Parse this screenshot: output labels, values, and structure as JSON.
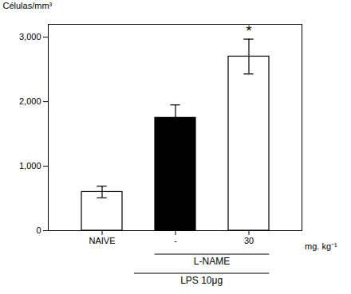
{
  "chart_data": {
    "type": "bar",
    "categories": [
      "NAIVE",
      "-",
      "30"
    ],
    "values": [
      600,
      1750,
      2700
    ],
    "errors": [
      90,
      200,
      270
    ],
    "colors": [
      "white",
      "black",
      "white"
    ],
    "ylabel": "Células/mm³",
    "ylim": [
      0,
      3200
    ],
    "yticks": [
      0,
      1000,
      2000,
      3000
    ],
    "grid": false,
    "annotations": [
      {
        "text": "*",
        "category": "30"
      },
      {
        "text": "mg. kg⁻¹"
      },
      {
        "text": "L-NAME",
        "categories": [
          "-",
          "30"
        ]
      },
      {
        "text": "LPS 10μg",
        "categories": [
          "-",
          "30"
        ]
      }
    ]
  }
}
